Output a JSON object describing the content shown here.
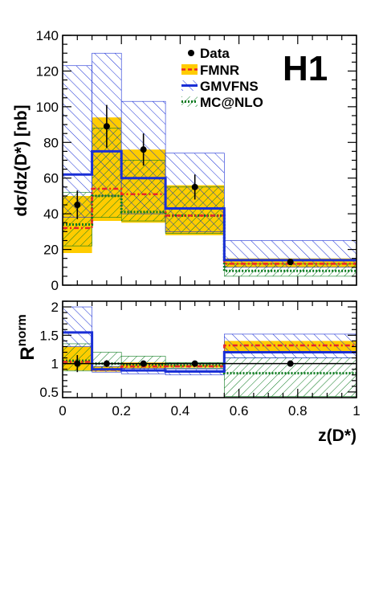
{
  "experiment_label": "H1",
  "legend": {
    "data": "Data",
    "fmnr": "FMNR",
    "gmvfns": "GMVFNS",
    "mcatnlo": "MC@NLO"
  },
  "colors": {
    "fmnr_band": "#ffcc00",
    "fmnr_line": "#e8262a",
    "gmvfns": "#1a2fd6",
    "mcatnlo": "#0b7a1e",
    "data": "#000000"
  },
  "chart_data": [
    {
      "type": "line",
      "panel": "top",
      "xlabel": "",
      "ylabel": "dσ/dz(D*) [nb]",
      "xlim": [
        0,
        1
      ],
      "ylim": [
        0,
        140
      ],
      "xticks": [
        0,
        0.2,
        0.4,
        0.6,
        0.8,
        1
      ],
      "yticks": [
        0,
        20,
        40,
        60,
        80,
        100,
        120,
        140
      ],
      "bin_edges": [
        0,
        0.1,
        0.2,
        0.35,
        0.55,
        1.0
      ],
      "data": {
        "name": "Data",
        "x": [
          0.05,
          0.15,
          0.275,
          0.45,
          0.775
        ],
        "y": [
          45,
          89,
          76,
          55,
          13
        ],
        "err": [
          8,
          12,
          9,
          7,
          1.5
        ]
      },
      "fmnr": {
        "name": "FMNR",
        "central": [
          32,
          54,
          51,
          39,
          12
        ],
        "low": [
          18,
          36,
          35,
          28,
          10
        ],
        "high": [
          50,
          94,
          76,
          56,
          15
        ]
      },
      "gmvfns": {
        "name": "GMVFNS",
        "central": [
          62,
          75,
          60,
          43,
          14
        ],
        "low": [
          38,
          50,
          40,
          30,
          10
        ],
        "high": [
          123,
          130,
          103,
          74,
          25
        ]
      },
      "mcatnlo": {
        "name": "MC@NLO",
        "central": [
          34,
          50,
          41,
          39,
          8
        ],
        "low": [
          22,
          38,
          36,
          29,
          5
        ],
        "high": [
          52,
          88,
          70,
          55,
          12
        ]
      }
    },
    {
      "type": "line",
      "panel": "bottom",
      "xlabel": "z(D*)",
      "ylabel": "R^norm",
      "xlim": [
        0,
        1
      ],
      "ylim": [
        0.4,
        2.1
      ],
      "xticks": [
        0,
        0.2,
        0.4,
        0.6,
        0.8,
        1
      ],
      "yticks": [
        0.5,
        1,
        1.5,
        2
      ],
      "bin_edges": [
        0,
        0.1,
        0.2,
        0.35,
        0.55,
        1.0
      ],
      "data": {
        "name": "Data",
        "x": [
          0.05,
          0.15,
          0.275,
          0.45,
          0.775
        ],
        "y": [
          1.0,
          1.0,
          1.0,
          1.0,
          1.0
        ],
        "err": [
          0.15,
          0.06,
          0.05,
          0.05,
          0.02
        ]
      },
      "fmnr": {
        "name": "FMNR",
        "central": [
          1.03,
          0.89,
          0.95,
          0.95,
          1.32
        ],
        "low": [
          0.88,
          0.86,
          0.91,
          0.93,
          1.2
        ],
        "high": [
          1.3,
          0.95,
          1.02,
          0.98,
          1.4
        ]
      },
      "gmvfns": {
        "name": "GMVFNS",
        "central": [
          1.55,
          0.9,
          0.88,
          0.86,
          1.2
        ],
        "low": [
          1.3,
          0.85,
          0.82,
          0.8,
          1.1
        ],
        "high": [
          2.0,
          0.95,
          0.92,
          0.9,
          1.52
        ]
      },
      "mcatnlo": {
        "name": "MC@NLO",
        "central": [
          1.05,
          1.0,
          0.98,
          0.97,
          0.83
        ],
        "low": [
          0.87,
          0.9,
          0.88,
          0.92,
          0.42
        ],
        "high": [
          1.35,
          1.2,
          1.13,
          1.02,
          1.1
        ]
      }
    }
  ]
}
